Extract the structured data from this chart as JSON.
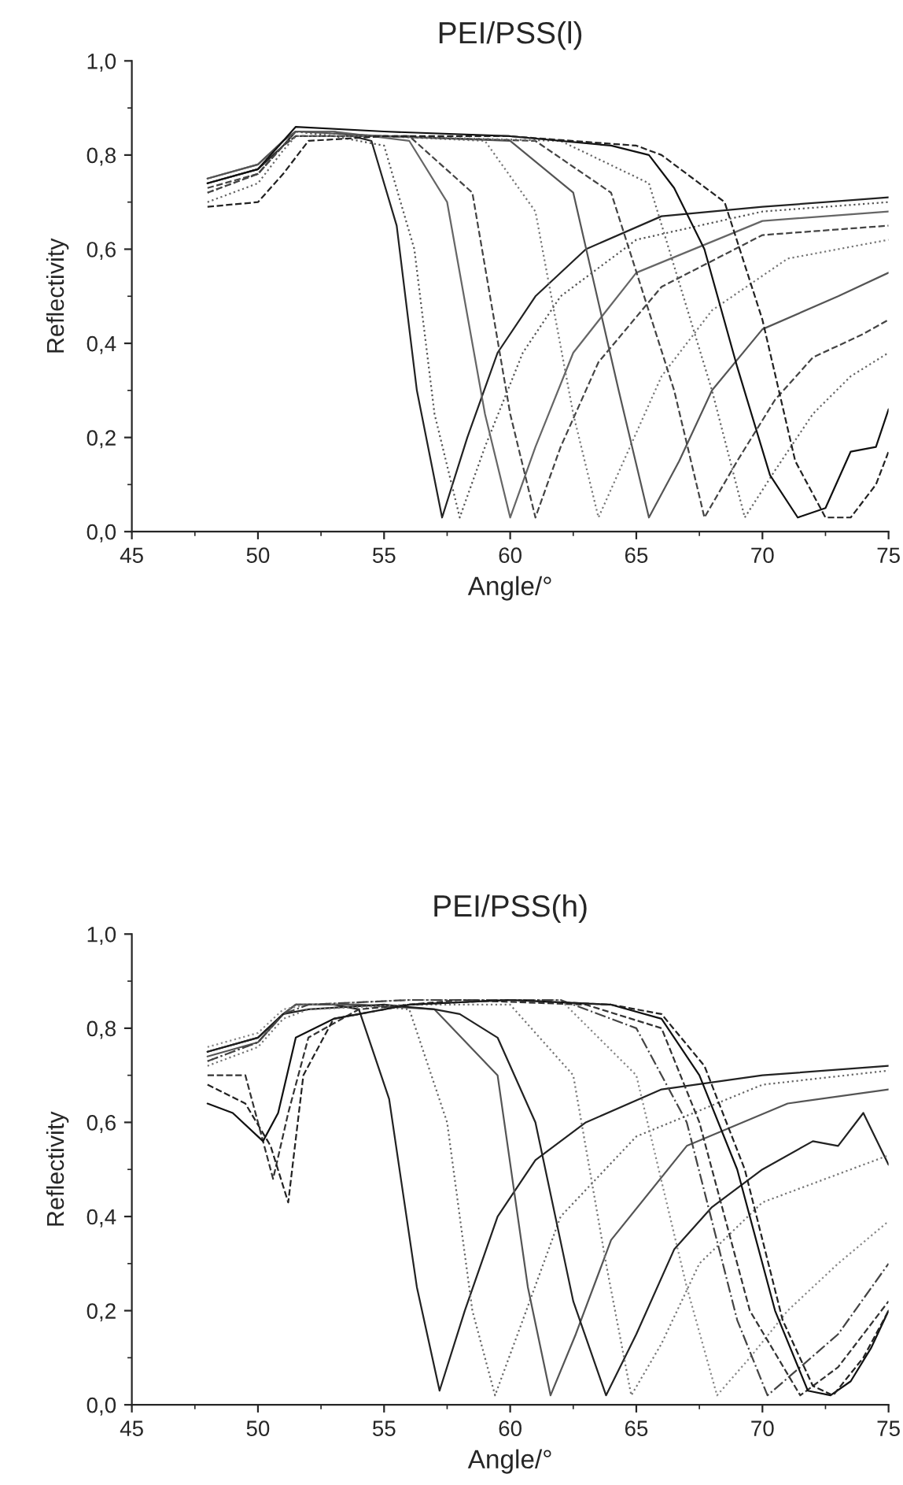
{
  "chart_data": [
    {
      "type": "line",
      "title": "PEI/PSS(l)",
      "xlabel": "Angle/°",
      "ylabel": "Reflectivity",
      "xlim": [
        45,
        75
      ],
      "xticks": [
        45,
        50,
        55,
        60,
        65,
        70,
        75
      ],
      "ylim": [
        0,
        1
      ],
      "yticks": [
        {
          "value": 0,
          "label": "0,0"
        },
        {
          "value": 0.2,
          "label": "0,2"
        },
        {
          "value": 0.4,
          "label": "0,4"
        },
        {
          "value": 0.6,
          "label": "0,6"
        },
        {
          "value": 0.8,
          "label": "0,8"
        },
        {
          "value": 1,
          "label": "1,0"
        }
      ],
      "marker": "none",
      "series": [
        {
          "color": "#222222",
          "line_style": "solid",
          "x": [
            48,
            50,
            51,
            51.5,
            53,
            54.5,
            55.5,
            56.3,
            57.3,
            58.3,
            59.5,
            61,
            63,
            66,
            70,
            75
          ],
          "values": [
            0.74,
            0.77,
            0.82,
            0.85,
            0.85,
            0.83,
            0.65,
            0.3,
            0.03,
            0.2,
            0.38,
            0.5,
            0.6,
            0.67,
            0.69,
            0.71
          ]
        },
        {
          "color": "#555555",
          "line_style": "dotted",
          "x": [
            48,
            50,
            51,
            51.5,
            53,
            55,
            56.2,
            57,
            58,
            59,
            60.5,
            62,
            65,
            70,
            75
          ],
          "values": [
            0.72,
            0.76,
            0.82,
            0.85,
            0.84,
            0.82,
            0.6,
            0.25,
            0.03,
            0.18,
            0.38,
            0.5,
            0.62,
            0.68,
            0.7
          ]
        },
        {
          "color": "#666666",
          "line_style": "solid",
          "x": [
            48,
            50,
            51,
            51.5,
            53,
            56,
            57.5,
            59,
            60,
            61,
            62.5,
            65,
            70,
            75
          ],
          "values": [
            0.75,
            0.78,
            0.83,
            0.85,
            0.85,
            0.83,
            0.7,
            0.25,
            0.03,
            0.18,
            0.38,
            0.55,
            0.66,
            0.68
          ]
        },
        {
          "color": "#444444",
          "line_style": "dashed",
          "x": [
            48,
            50,
            51,
            51.5,
            53,
            56,
            58.5,
            60,
            61,
            62,
            63.5,
            66,
            70,
            75
          ],
          "values": [
            0.73,
            0.76,
            0.82,
            0.84,
            0.84,
            0.84,
            0.72,
            0.25,
            0.03,
            0.18,
            0.36,
            0.52,
            0.63,
            0.65
          ]
        },
        {
          "color": "#777777",
          "line_style": "dotted",
          "x": [
            48,
            50,
            51,
            51.5,
            55,
            59,
            61,
            62.5,
            63.5,
            64.5,
            66,
            68,
            71,
            75
          ],
          "values": [
            0.74,
            0.77,
            0.83,
            0.85,
            0.84,
            0.83,
            0.68,
            0.25,
            0.03,
            0.15,
            0.33,
            0.47,
            0.58,
            0.62
          ]
        },
        {
          "color": "#555555",
          "line_style": "solid",
          "x": [
            48,
            50,
            51,
            51.5,
            55,
            60,
            62.5,
            64.3,
            65.5,
            66.7,
            68,
            70,
            73,
            75
          ],
          "values": [
            0.75,
            0.78,
            0.83,
            0.85,
            0.84,
            0.83,
            0.72,
            0.3,
            0.03,
            0.15,
            0.3,
            0.43,
            0.5,
            0.55
          ]
        },
        {
          "color": "#444444",
          "line_style": "dashed",
          "x": [
            48,
            50,
            51,
            51.5,
            55,
            61,
            64,
            66.5,
            67.7,
            69,
            70.5,
            72,
            74,
            75
          ],
          "values": [
            0.72,
            0.76,
            0.82,
            0.84,
            0.84,
            0.83,
            0.72,
            0.3,
            0.03,
            0.15,
            0.28,
            0.37,
            0.42,
            0.45
          ]
        },
        {
          "color": "#666666",
          "line_style": "dotted",
          "x": [
            48,
            50,
            51,
            51.5,
            55,
            62,
            65.5,
            68,
            69.3,
            70.5,
            72,
            73.5,
            75
          ],
          "values": [
            0.7,
            0.74,
            0.81,
            0.84,
            0.84,
            0.83,
            0.74,
            0.3,
            0.03,
            0.13,
            0.25,
            0.33,
            0.38
          ]
        },
        {
          "color": "#111111",
          "line_style": "solid",
          "x": [
            48,
            50,
            51,
            51.5,
            55,
            60,
            64,
            65.5,
            66.5,
            67.7,
            69,
            70.3,
            71.4,
            72.5,
            73.5,
            74.5,
            75
          ],
          "values": [
            0.74,
            0.77,
            0.83,
            0.86,
            0.85,
            0.84,
            0.82,
            0.8,
            0.73,
            0.6,
            0.35,
            0.12,
            0.03,
            0.05,
            0.17,
            0.18,
            0.26
          ]
        },
        {
          "color": "#222222",
          "line_style": "dashed",
          "x": [
            48,
            50,
            51,
            52,
            55,
            60,
            65,
            66,
            67,
            68.5,
            70,
            71.3,
            72.5,
            73.5,
            74.5,
            75
          ],
          "values": [
            0.69,
            0.7,
            0.76,
            0.83,
            0.84,
            0.84,
            0.82,
            0.8,
            0.76,
            0.7,
            0.45,
            0.15,
            0.03,
            0.03,
            0.1,
            0.17
          ]
        }
      ]
    },
    {
      "type": "line",
      "title": "PEI/PSS(h)",
      "xlabel": "Angle/°",
      "ylabel": "Reflectivity",
      "xlim": [
        45,
        75
      ],
      "xticks": [
        45,
        50,
        55,
        60,
        65,
        70,
        75
      ],
      "ylim": [
        0,
        1
      ],
      "yticks": [
        {
          "value": 0,
          "label": "0,0"
        },
        {
          "value": 0.2,
          "label": "0,2"
        },
        {
          "value": 0.4,
          "label": "0,4"
        },
        {
          "value": 0.6,
          "label": "0,6"
        },
        {
          "value": 0.8,
          "label": "0,8"
        },
        {
          "value": 1,
          "label": "1,0"
        }
      ],
      "marker": "none",
      "series": [
        {
          "color": "#222222",
          "line_style": "solid",
          "x": [
            48,
            50,
            51,
            51.5,
            53,
            54,
            55.2,
            56.3,
            57.2,
            58.2,
            59.5,
            61,
            63,
            66,
            70,
            75
          ],
          "values": [
            0.75,
            0.78,
            0.83,
            0.85,
            0.85,
            0.84,
            0.65,
            0.25,
            0.03,
            0.2,
            0.4,
            0.52,
            0.6,
            0.67,
            0.7,
            0.72
          ]
        },
        {
          "color": "#666666",
          "line_style": "dotted",
          "x": [
            48,
            50,
            51,
            51.5,
            54,
            56,
            57.5,
            58.5,
            59.4,
            60.5,
            62,
            65,
            70,
            75
          ],
          "values": [
            0.73,
            0.77,
            0.83,
            0.85,
            0.85,
            0.84,
            0.6,
            0.2,
            0.02,
            0.18,
            0.4,
            0.57,
            0.68,
            0.71
          ]
        },
        {
          "color": "#555555",
          "line_style": "solid",
          "x": [
            48,
            50,
            51,
            51.5,
            54,
            57,
            59.5,
            60.7,
            61.6,
            62.6,
            64,
            67,
            71,
            75
          ],
          "values": [
            0.74,
            0.77,
            0.83,
            0.85,
            0.85,
            0.84,
            0.7,
            0.25,
            0.02,
            0.15,
            0.35,
            0.55,
            0.64,
            0.67
          ]
        },
        {
          "color": "#222222",
          "line_style": "solid",
          "x": [
            48,
            50,
            51,
            52,
            55,
            57,
            58,
            59.5,
            61,
            62.5,
            63.8,
            65,
            66.5,
            68,
            70,
            72,
            73,
            74,
            75
          ],
          "values": [
            0.75,
            0.78,
            0.83,
            0.84,
            0.85,
            0.84,
            0.83,
            0.78,
            0.6,
            0.22,
            0.02,
            0.15,
            0.33,
            0.42,
            0.5,
            0.56,
            0.55,
            0.62,
            0.51
          ]
        },
        {
          "color": "#777777",
          "line_style": "dotted",
          "x": [
            48,
            50,
            51,
            52,
            56,
            60,
            62.5,
            63.8,
            64.8,
            66,
            67.5,
            70,
            75
          ],
          "values": [
            0.72,
            0.76,
            0.82,
            0.84,
            0.85,
            0.85,
            0.7,
            0.3,
            0.02,
            0.13,
            0.3,
            0.43,
            0.53
          ]
        },
        {
          "color": "#888888",
          "line_style": "dotted",
          "x": [
            48,
            50,
            51,
            52,
            56,
            62,
            65,
            67,
            68.2,
            69.5,
            71,
            73,
            75
          ],
          "values": [
            0.76,
            0.79,
            0.84,
            0.85,
            0.86,
            0.86,
            0.7,
            0.25,
            0.02,
            0.1,
            0.2,
            0.3,
            0.39
          ]
        },
        {
          "color": "#444444",
          "line_style": "dashdot",
          "x": [
            48,
            50,
            51,
            52,
            56,
            62,
            65,
            67,
            69,
            70.2,
            71.5,
            73,
            75
          ],
          "values": [
            0.73,
            0.77,
            0.83,
            0.85,
            0.86,
            0.86,
            0.8,
            0.6,
            0.18,
            0.02,
            0.08,
            0.15,
            0.3
          ]
        },
        {
          "color": "#333333",
          "line_style": "dashed",
          "x": [
            48,
            49.5,
            50.6,
            51.2,
            52,
            54,
            58,
            63,
            66,
            67.5,
            69.5,
            71.5,
            73,
            75
          ],
          "values": [
            0.7,
            0.7,
            0.48,
            0.62,
            0.78,
            0.84,
            0.86,
            0.85,
            0.8,
            0.6,
            0.2,
            0.02,
            0.08,
            0.22
          ]
        },
        {
          "color": "#111111",
          "line_style": "solid",
          "x": [
            48,
            49,
            50.2,
            50.8,
            51.5,
            53,
            56,
            60,
            64,
            66,
            67.5,
            69,
            70.5,
            71.8,
            72.7,
            73.5,
            74.3,
            75
          ],
          "values": [
            0.64,
            0.62,
            0.56,
            0.62,
            0.78,
            0.82,
            0.85,
            0.86,
            0.85,
            0.82,
            0.7,
            0.5,
            0.2,
            0.03,
            0.02,
            0.05,
            0.12,
            0.2
          ]
        },
        {
          "color": "#222222",
          "line_style": "dashed",
          "x": [
            48,
            49.5,
            50.5,
            51.2,
            51.8,
            53,
            56,
            60,
            64,
            66,
            67.7,
            69.3,
            70.8,
            72,
            72.8,
            74,
            75
          ],
          "values": [
            0.68,
            0.64,
            0.55,
            0.43,
            0.7,
            0.82,
            0.85,
            0.86,
            0.85,
            0.83,
            0.72,
            0.5,
            0.18,
            0.04,
            0.02,
            0.1,
            0.2
          ]
        }
      ]
    }
  ]
}
